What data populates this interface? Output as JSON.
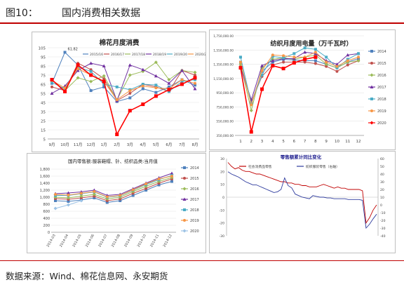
{
  "header": {
    "figure_no": "图10：",
    "title": "国内消费相关数据"
  },
  "footer": {
    "source": "数据来源：Wind、棉花信息网、永安期货"
  },
  "chart_data": [
    {
      "id": "cotton",
      "type": "line",
      "title": "棉花月度消费",
      "categories": [
        "9月",
        "10月",
        "11月",
        "12月",
        "1月",
        "2月",
        "3月",
        "4月",
        "5月",
        "6月",
        "7月",
        "8月"
      ],
      "yticks": [
        "5",
        "15",
        "25",
        "35",
        "45",
        "55",
        "65",
        "75",
        "85",
        "95",
        "105"
      ],
      "ylim": [
        5,
        105
      ],
      "annotation": {
        "label": "61.82",
        "series": 0,
        "index": 1
      },
      "legend": "top",
      "series": [
        {
          "name": "2015/16",
          "color": "#4f81bd",
          "values": [
            66,
            100,
            86,
            58,
            62,
            46,
            50,
            60,
            56,
            62,
            70,
            64
          ]
        },
        {
          "name": "2016/17",
          "color": "#c0504d",
          "values": [
            62,
            58,
            88,
            81,
            71,
            47,
            55,
            65,
            62,
            57,
            80,
            75
          ]
        },
        {
          "name": "2017/18",
          "color": "#9bbb59",
          "values": [
            70,
            58,
            72,
            68,
            74,
            48,
            75,
            79,
            89,
            70,
            80,
            78
          ]
        },
        {
          "name": "2018/19",
          "color": "#7030a0",
          "values": [
            55,
            63,
            80,
            88,
            85,
            47,
            86,
            81,
            74,
            66,
            80,
            60
          ]
        },
        {
          "name": "2019/20",
          "color": "#4bacc6",
          "values": [
            67,
            60,
            84,
            79,
            65,
            62,
            59,
            65,
            64,
            57,
            68,
            70
          ]
        },
        {
          "name": "2020/21",
          "color": "#f79646",
          "values": [
            69,
            61,
            82,
            75,
            68,
            48,
            58,
            63,
            61,
            60,
            70,
            66
          ]
        },
        {
          "name": "",
          "color": "#ff0000",
          "thick": true,
          "values": [
            70,
            57,
            86,
            75,
            68,
            10,
            36,
            43,
            52,
            59,
            65,
            72
          ]
        }
      ]
    },
    {
      "id": "power",
      "type": "line",
      "title": "纺织月度用电量（万千瓦时）",
      "categories": [
        "1",
        "2",
        "3",
        "4",
        "5",
        "6",
        "7",
        "8",
        "9",
        "10",
        "11",
        "12"
      ],
      "yticks": [
        "350,000.00",
        "550,000.00",
        "750,000.00",
        "950,000.00",
        "1,150,000.00",
        "1,350,000.00",
        "1,550,000.00",
        "1,750,000.00"
      ],
      "ylim": [
        350000,
        1750000
      ],
      "legend": "right",
      "series": [
        {
          "name": "2014",
          "color": "#4f81bd",
          "values": [
            1380000,
            800000,
            1250000,
            1380000,
            1420000,
            1410000,
            1400000,
            1400000,
            1350000,
            1300000,
            1380000,
            1430000
          ]
        },
        {
          "name": "2015",
          "color": "#c0504d",
          "values": [
            1320000,
            820000,
            1180000,
            1340000,
            1380000,
            1380000,
            1380000,
            1360000,
            1320000,
            1250000,
            1340000,
            1400000
          ]
        },
        {
          "name": "2016",
          "color": "#9bbb59",
          "values": [
            1350000,
            700000,
            1300000,
            1420000,
            1440000,
            1420000,
            1450000,
            1480000,
            1350000,
            1300000,
            1380000,
            1400000
          ]
        },
        {
          "name": "2017",
          "color": "#7030a0",
          "values": [
            1300000,
            850000,
            1330000,
            1400000,
            1430000,
            1430000,
            1520000,
            1500000,
            1400000,
            1350000,
            1480000,
            1500000
          ]
        },
        {
          "name": "2018",
          "color": "#4bacc6",
          "values": [
            1450000,
            800000,
            1200000,
            1460000,
            1440000,
            1500000,
            1580000,
            1560000,
            1450000,
            1300000,
            1420000,
            1500000
          ]
        },
        {
          "name": "2019",
          "color": "#f79646",
          "values": [
            1380000,
            780000,
            1260000,
            1480000,
            1470000,
            1450000,
            1450000,
            1520000,
            1380000,
            1320000,
            1400000,
            1450000
          ]
        },
        {
          "name": "2020",
          "color": "#ff0000",
          "thick": true,
          "values": [
            1300000,
            400000,
            1000000,
            1330000,
            1290000,
            1370000,
            1420000,
            1450000,
            null,
            null,
            null,
            null
          ]
        }
      ]
    },
    {
      "id": "retail",
      "type": "line",
      "title": "国内零售额:服装鞋帽、针、纺织品类:当月值",
      "categories": [
        "2014-03",
        "2014-04",
        "2014-05",
        "2014-06",
        "2014-07",
        "2014-08",
        "2014-09",
        "2014-10",
        "2014-11",
        "2014-12"
      ],
      "yticks": [
        "0",
        "200",
        "400",
        "600",
        "800",
        "1,000",
        "1,200",
        "1,400",
        "1,600",
        "1,800"
      ],
      "ylim": [
        0,
        1800
      ],
      "legend": "right",
      "series": [
        {
          "name": "2014",
          "color": "#4f81bd",
          "values": [
            900,
            880,
            920,
            980,
            850,
            900,
            1050,
            1200,
            1350,
            1450
          ]
        },
        {
          "name": "2015",
          "color": "#c0504d",
          "values": [
            960,
            940,
            980,
            1030,
            900,
            950,
            1110,
            1250,
            1400,
            1520
          ]
        },
        {
          "name": "2016",
          "color": "#9bbb59",
          "values": [
            1000,
            980,
            1030,
            1080,
            950,
            1000,
            1160,
            1310,
            1450,
            1560
          ]
        },
        {
          "name": "2017",
          "color": "#7030a0",
          "values": [
            1100,
            1120,
            1150,
            1200,
            1050,
            1080,
            1240,
            1400,
            1550,
            1680
          ]
        },
        {
          "name": "2018",
          "color": "#4bacc6",
          "values": [
            1050,
            1050,
            1100,
            1150,
            1000,
            1040,
            1200,
            1360,
            1500,
            1620
          ]
        },
        {
          "name": "2019",
          "color": "#f79646",
          "values": [
            1080,
            1060,
            1110,
            1160,
            1010,
            1050,
            1210,
            1380,
            1520,
            1600
          ]
        },
        {
          "name": "2020",
          "color": "#9dc3e6",
          "values": [
            680,
            780,
            900,
            null,
            null,
            null,
            null,
            null,
            null,
            null
          ]
        }
      ]
    },
    {
      "id": "yoy",
      "type": "line",
      "title": "零售额累计同比变化",
      "legend_entries": [
        "社会消费品零售",
        "纺织服装零售（右轴）"
      ],
      "left_yticks": [
        "30",
        "20",
        "10",
        "0",
        "-10",
        "-20",
        "-30"
      ],
      "right_yticks": [
        "60",
        "50",
        "40",
        "30",
        "20",
        "10",
        "0",
        "-10",
        "-20",
        "-30",
        "-40"
      ],
      "left_ylim": [
        -30,
        30
      ],
      "right_ylim": [
        -40,
        60
      ],
      "series": [
        {
          "name": "社会消费品零售",
          "color": "#c00000",
          "axis": "left",
          "values": [
            27,
            24,
            22,
            23,
            21,
            20,
            20,
            19,
            18,
            18,
            17,
            16,
            15,
            14,
            13,
            12,
            12,
            11,
            11,
            10,
            10,
            9,
            9,
            8,
            8,
            8,
            9,
            10,
            9,
            8,
            7,
            8,
            7,
            7,
            6,
            6,
            6,
            6,
            5,
            -20,
            -16,
            -10,
            -6
          ]
        },
        {
          "name": "纺织服装零售（右轴）",
          "color": "#2f3c9e",
          "axis": "right",
          "values": [
            43,
            40,
            38,
            36,
            33,
            30,
            28,
            26,
            26,
            24,
            22,
            20,
            18,
            16,
            17,
            20,
            35,
            25,
            22,
            14,
            12,
            10,
            9,
            8,
            12,
            11,
            10,
            10,
            9,
            9,
            8,
            8,
            8,
            8,
            7,
            7,
            7,
            7,
            6,
            -30,
            -25,
            -18,
            -12
          ]
        }
      ]
    }
  ]
}
